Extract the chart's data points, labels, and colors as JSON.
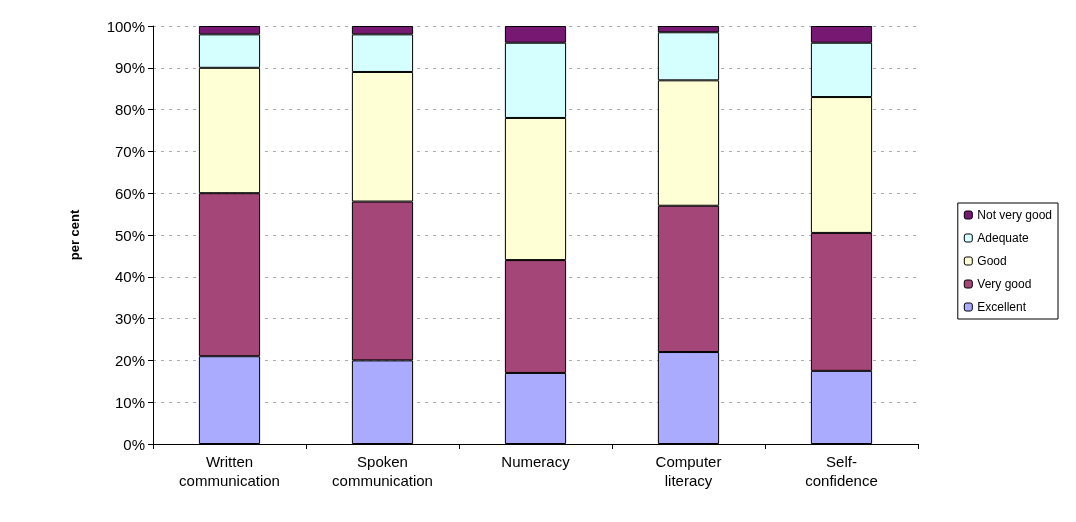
{
  "chart_data": {
    "type": "bar",
    "stacked": true,
    "ylabel": "per cent",
    "categories": [
      "Written\ncommunication",
      "Spoken\ncommunication",
      "Numeracy",
      "Computer\nliteracy",
      "Self-\nconfidence"
    ],
    "series": [
      {
        "name": "Excellent",
        "color": "#aaaaff",
        "values": [
          21,
          20,
          17,
          22,
          17.5
        ]
      },
      {
        "name": "Very good",
        "color": "#a44677",
        "values": [
          39,
          38,
          27,
          35,
          33
        ]
      },
      {
        "name": "Good",
        "color": "#ffffd5",
        "values": [
          30,
          31,
          34,
          30,
          32.5
        ]
      },
      {
        "name": "Adequate",
        "color": "#d5ffff",
        "values": [
          8,
          9,
          18,
          11.5,
          13
        ]
      },
      {
        "name": "Not very good",
        "color": "#771873",
        "values": [
          2,
          2,
          4,
          1.5,
          4
        ]
      }
    ],
    "ylim": [
      0,
      100
    ],
    "yticks": [
      {
        "value": 0,
        "label": "0%"
      },
      {
        "value": 10,
        "label": "10%"
      },
      {
        "value": 20,
        "label": "20%"
      },
      {
        "value": 30,
        "label": "30%"
      },
      {
        "value": 40,
        "label": "40%"
      },
      {
        "value": 50,
        "label": "50%"
      },
      {
        "value": 60,
        "label": "60%"
      },
      {
        "value": 70,
        "label": "70%"
      },
      {
        "value": 80,
        "label": "80%"
      },
      {
        "value": 90,
        "label": "90%"
      },
      {
        "value": 100,
        "label": "100%"
      }
    ],
    "grid": "y",
    "legend": "right"
  }
}
